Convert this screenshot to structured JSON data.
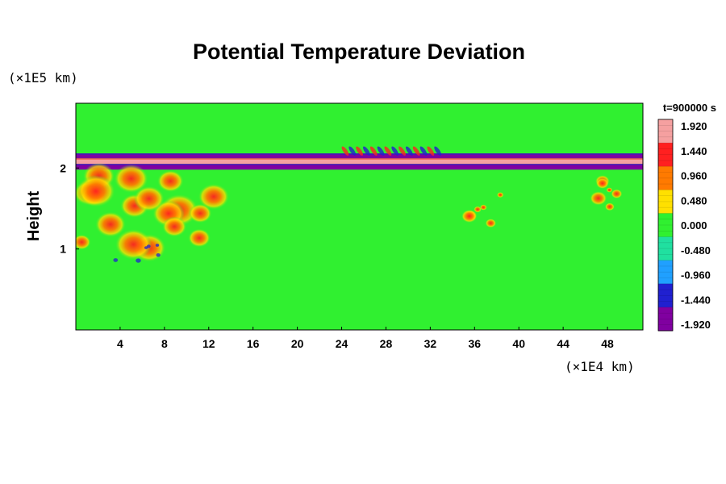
{
  "chart_data": {
    "type": "heatmap",
    "title": "Potential Temperature Deviation",
    "xlabel": "",
    "ylabel": "Height",
    "x_unit": "(×1E4 km)",
    "y_unit": "(×1E5 km)",
    "time_label": "t=900000 s",
    "xlim": [
      0,
      51.2
    ],
    "ylim": [
      0,
      2.8
    ],
    "x_ticks": [
      4,
      8,
      12,
      16,
      20,
      24,
      28,
      32,
      36,
      40,
      44,
      48
    ],
    "y_ticks": [
      1,
      2
    ],
    "background_value": 0.0,
    "colorbar": {
      "levels": [
        1.92,
        1.44,
        0.96,
        0.48,
        0.0,
        -0.48,
        -0.96,
        -1.44,
        -1.92
      ],
      "labels": [
        "1.920",
        "1.440",
        "0.960",
        "0.480",
        "0.000",
        "-0.480",
        "-0.960",
        "-1.440",
        "-1.920"
      ],
      "colors": [
        "#f5a0a0",
        "#ff2020",
        "#ff7a00",
        "#ffe000",
        "#30f030",
        "#20e0a0",
        "#20a0ff",
        "#2020d0",
        "#8000a0"
      ]
    },
    "features": [
      {
        "name": "upper warm band",
        "x_range": [
          0,
          51.2
        ],
        "y_range": [
          2.05,
          2.12
        ],
        "value": 1.92
      },
      {
        "name": "upper cold band",
        "x_range": [
          0,
          51.2
        ],
        "y_range": [
          2.12,
          2.18
        ],
        "value": -1.92
      },
      {
        "name": "lower cold band",
        "x_range": [
          0,
          51.2
        ],
        "y_range": [
          1.98,
          2.05
        ],
        "value": -1.92
      },
      {
        "name": "wave train",
        "x_range": [
          24,
          33
        ],
        "y_range": [
          2.15,
          2.3
        ],
        "value": 1.44
      },
      {
        "name": "left eddy cluster",
        "x_range": [
          0,
          14
        ],
        "y_range": [
          1.0,
          1.9
        ],
        "value": 1.44
      },
      {
        "name": "central plume",
        "x_range": [
          35,
          39
        ],
        "y_range": [
          1.3,
          1.7
        ],
        "value": 1.44
      },
      {
        "name": "right eddy",
        "x_range": [
          47,
          51.2
        ],
        "y_range": [
          1.5,
          1.9
        ],
        "value": 1.44
      },
      {
        "name": "cold eddies",
        "x_range": [
          2,
          8
        ],
        "y_range": [
          0.85,
          1.05
        ],
        "value": -1.44
      }
    ]
  }
}
